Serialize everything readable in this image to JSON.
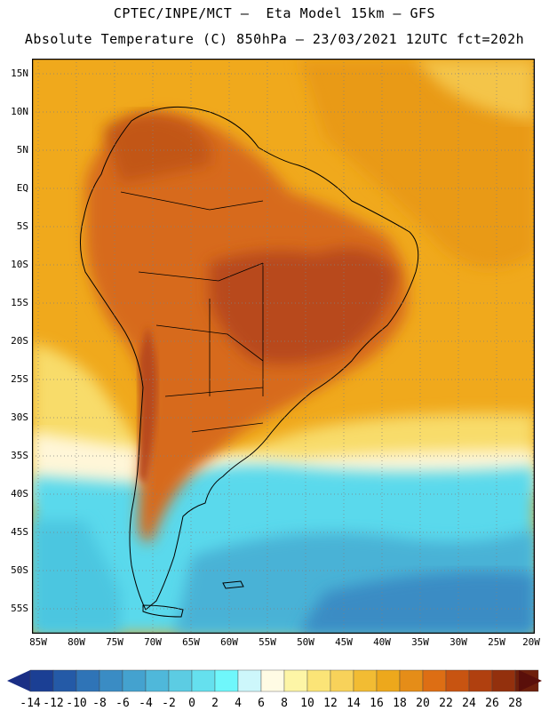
{
  "header": {
    "line1": "CPTEC/INPE/MCT –  Eta Model 15km – GFS",
    "line2": "Absolute Temperature (C) 850hPa – 23/03/2021 12UTC fct=202h"
  },
  "map": {
    "latitudes": [
      "15N",
      "10N",
      "5N",
      "EQ",
      "5S",
      "10S",
      "15S",
      "20S",
      "25S",
      "30S",
      "35S",
      "40S",
      "45S",
      "50S",
      "55S"
    ],
    "longitudes": [
      "85W",
      "80W",
      "75W",
      "70W",
      "65W",
      "60W",
      "55W",
      "50W",
      "45W",
      "40W",
      "35W",
      "30W",
      "25W",
      "20W"
    ],
    "colors": {
      "ocean_warm": "#f2a81c",
      "land_hot": "#d5661e",
      "land_very_hot": "#b64a17",
      "cool_yellow": "#f7dc6a",
      "cold_cyan": "#53dcee",
      "cold_blue": "#3b9fcd",
      "coast": "#000000",
      "grid": "#808080"
    }
  },
  "colorbar": {
    "labels": [
      "-14",
      "-12",
      "-10",
      "-8",
      "-6",
      "-4",
      "-2",
      "0",
      "2",
      "4",
      "6",
      "8",
      "10",
      "12",
      "14",
      "16",
      "18",
      "20",
      "22",
      "24",
      "26",
      "28"
    ],
    "colors": [
      "#1b3f94",
      "#245aa7",
      "#2f74b7",
      "#3a8cc4",
      "#44a2cf",
      "#4fb8da",
      "#5ccce3",
      "#65e0ee",
      "#6ff7fb",
      "#cdf7fb",
      "#fffbe4",
      "#fdf5a6",
      "#fbe477",
      "#f8d25a",
      "#f2bc33",
      "#eda81c",
      "#e58d18",
      "#dd6e14",
      "#c85411",
      "#b0400f",
      "#93300d",
      "#6e1f0b"
    ],
    "end_left": "#1a2e85",
    "end_right": "#5a0f0a"
  }
}
